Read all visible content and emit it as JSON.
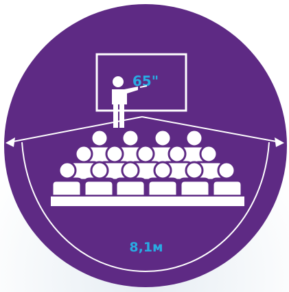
{
  "screen_size": "65\"",
  "distance": "8,1м"
}
